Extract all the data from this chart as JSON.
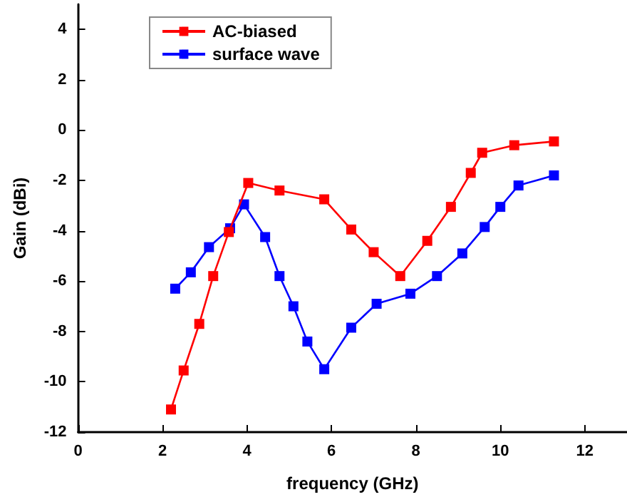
{
  "chart_data": {
    "type": "line",
    "xlabel": "frequency (GHz)",
    "ylabel": "Gain (dBi)",
    "xlim": [
      0,
      13
    ],
    "xticks": [
      0,
      2,
      4,
      6,
      8,
      10,
      12
    ],
    "ylim": [
      -12,
      5
    ],
    "yticks": [
      -12,
      -10,
      -8,
      -6,
      -4,
      -2,
      0,
      2,
      4
    ],
    "grid": false,
    "legend": "top left",
    "marker": "square",
    "line_style": "solid",
    "series": [
      {
        "name": "AC-biased",
        "color": "#ff0000",
        "x": [
          2.2,
          2.5,
          2.87,
          3.2,
          3.57,
          4.03,
          4.77,
          5.83,
          6.47,
          7.0,
          7.63,
          8.27,
          8.83,
          9.3,
          9.57,
          10.33,
          11.27
        ],
        "values": [
          -11.1,
          -9.55,
          -7.7,
          -5.8,
          -4.05,
          -2.1,
          -2.4,
          -2.75,
          -3.95,
          -4.85,
          -5.8,
          -4.4,
          -3.05,
          -1.7,
          -0.9,
          -0.6,
          -0.45
        ]
      },
      {
        "name": "surface wave",
        "color": "#0000ff",
        "x": [
          2.3,
          2.67,
          3.1,
          3.6,
          3.93,
          4.43,
          4.77,
          5.1,
          5.43,
          5.83,
          6.47,
          7.07,
          7.87,
          8.5,
          9.1,
          9.63,
          10.0,
          10.43,
          11.27
        ],
        "values": [
          -6.3,
          -5.65,
          -4.65,
          -3.9,
          -2.95,
          -4.25,
          -5.8,
          -7.0,
          -8.4,
          -9.5,
          -7.85,
          -6.9,
          -6.5,
          -5.8,
          -4.9,
          -3.85,
          -3.05,
          -2.2,
          -1.8
        ]
      }
    ]
  }
}
